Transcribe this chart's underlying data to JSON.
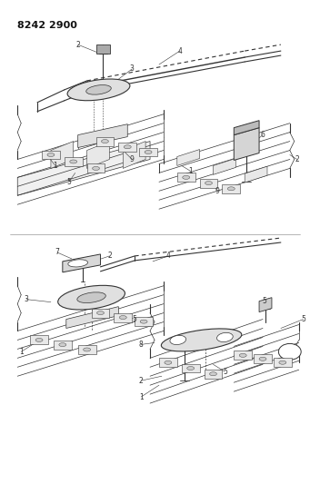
{
  "title": "8242 2900",
  "bg_color": "#ffffff",
  "line_color": "#333333",
  "title_fontsize": 8,
  "fig_width": 3.41,
  "fig_height": 5.33,
  "dpi": 100
}
